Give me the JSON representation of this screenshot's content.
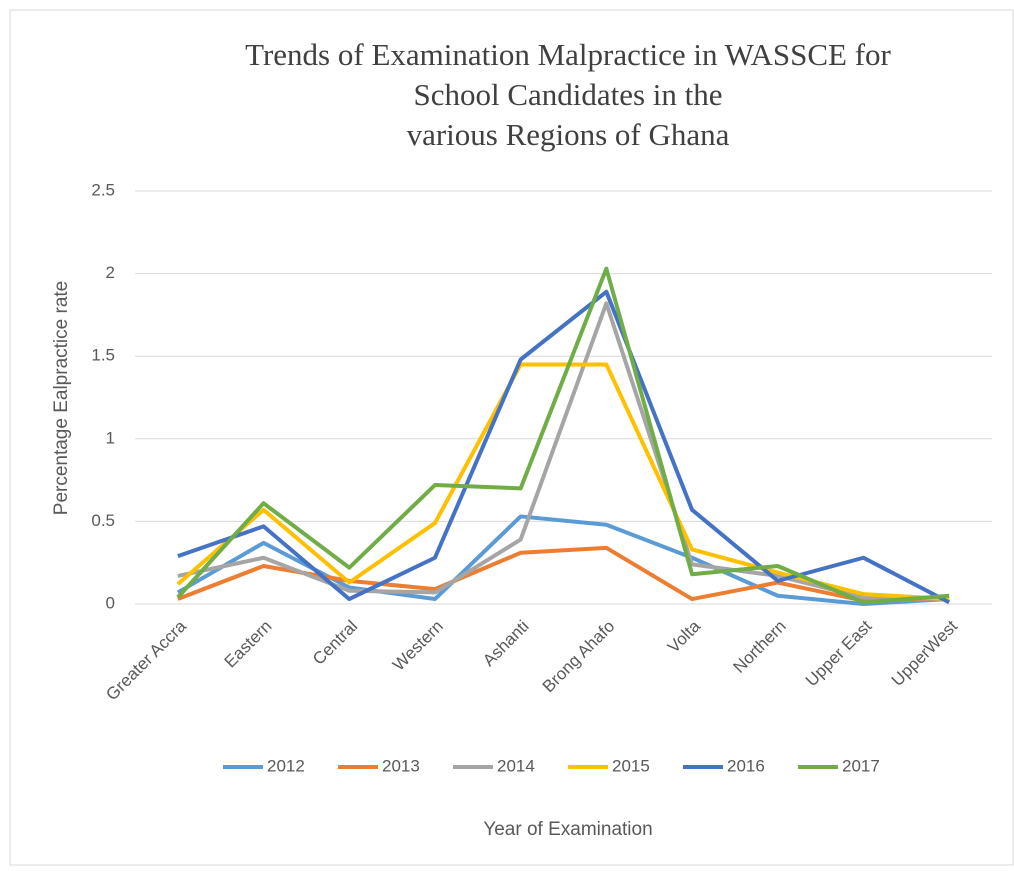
{
  "chart_data": {
    "type": "line",
    "title": [
      "Trends of Examination Malpractice in WASSCE for",
      "School Candidates in the",
      "various Regions of Ghana"
    ],
    "x_label": "Year of Examination",
    "y_label": "Percentage Ealpractice rate",
    "categories": [
      "Greater Accra",
      "Eastern",
      "Central",
      "Western",
      "Ashanti",
      "Brong Ahafo",
      "Volta",
      "Northern",
      "Upper East",
      "UpperWest"
    ],
    "series": [
      {
        "name": "2012",
        "color": "#5b9bd5",
        "values": [
          0.07,
          0.37,
          0.1,
          0.03,
          0.53,
          0.48,
          0.28,
          0.05,
          0.0,
          0.03
        ]
      },
      {
        "name": "2013",
        "color": "#ed7d31",
        "values": [
          0.03,
          0.23,
          0.14,
          0.09,
          0.31,
          0.34,
          0.03,
          0.13,
          0.02,
          0.03
        ]
      },
      {
        "name": "2014",
        "color": "#a5a5a5",
        "values": [
          0.17,
          0.28,
          0.08,
          0.07,
          0.39,
          1.82,
          0.24,
          0.17,
          0.04,
          0.03
        ]
      },
      {
        "name": "2015",
        "color": "#ffc000",
        "values": [
          0.12,
          0.57,
          0.13,
          0.49,
          1.45,
          1.45,
          0.33,
          0.19,
          0.06,
          0.03
        ]
      },
      {
        "name": "2016",
        "color": "#4472c4",
        "values": [
          0.29,
          0.47,
          0.03,
          0.28,
          1.48,
          1.89,
          0.57,
          0.14,
          0.28,
          0.01
        ]
      },
      {
        "name": "2017",
        "color": "#70ad47",
        "values": [
          0.04,
          0.61,
          0.22,
          0.72,
          0.7,
          2.03,
          0.18,
          0.23,
          0.01,
          0.05
        ]
      }
    ],
    "ylim": [
      0,
      2.5
    ],
    "yticks": [
      0,
      0.5,
      1,
      1.5,
      2,
      2.5
    ],
    "grid": true,
    "legend": "bottom"
  }
}
